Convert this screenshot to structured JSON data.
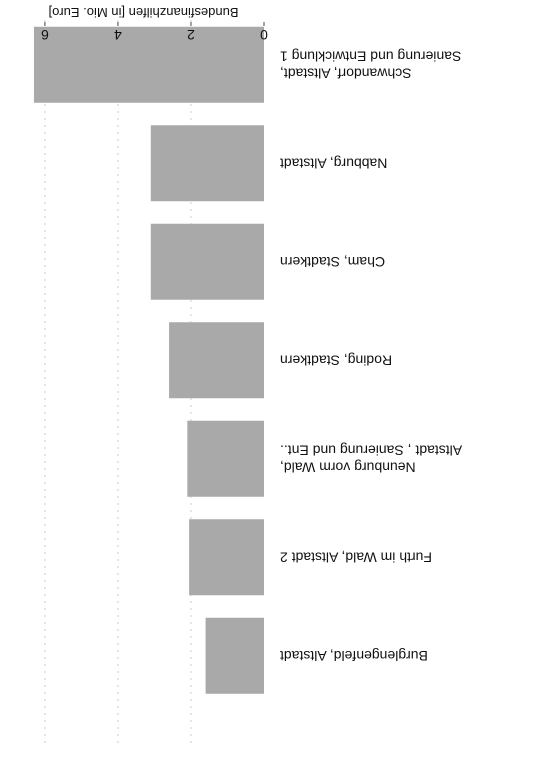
{
  "chart_data": {
    "type": "bar",
    "orientation": "horizontal",
    "rotation_deg": 180,
    "ylabel": "Bundesfinanzhilfen [in Mio. Euro]",
    "categories": [
      [
        "Schwandorf, Altstadt,",
        "Sanierung und Entwicklung 1"
      ],
      [
        "Nabburg, Altstadt"
      ],
      [
        "Cham, Stadtkern"
      ],
      [
        "Roding, Stadtkern"
      ],
      [
        "Neunburg vorm Wald,",
        "Altstadt , Sanierung und Ent.."
      ],
      [
        "Furth im Wald, Altstadt 2"
      ],
      [
        "Burglengenfeld, Altstadt"
      ]
    ],
    "values": [
      6.3,
      3.1,
      3.1,
      2.6,
      2.1,
      2.05,
      1.6
    ],
    "ylim": [
      0,
      6.6
    ],
    "yticks": [
      0,
      2,
      4,
      6
    ],
    "ytick_labels": [
      "0",
      "2",
      "4",
      "6"
    ],
    "grid": true,
    "bar_color": "#a9a9a9",
    "grid_color": "#cccccc"
  }
}
